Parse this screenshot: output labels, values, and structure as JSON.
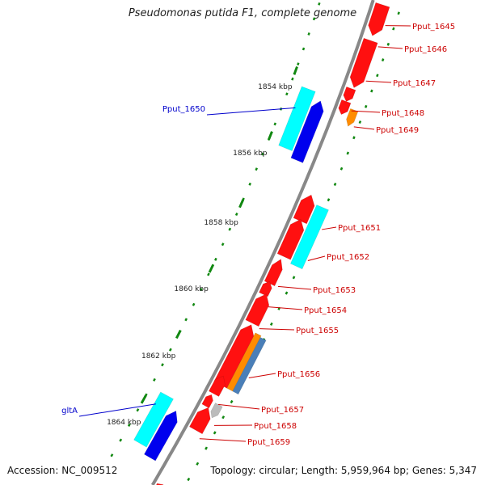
{
  "title": "Pseudomonas putida F1, complete genome",
  "accession": "Accession: NC_009512",
  "summary": "Topology: circular; Length: 5,959,964 bp; Genes: 5,347",
  "colors": {
    "backbone": "#888888",
    "tick": "#118811",
    "red_gene": "#ff1010",
    "cyan_gene": "#00ffff",
    "blue_gene": "#0000ee",
    "orange_gene": "#ff8c00",
    "steelblue_gene": "#4a7fb8",
    "gray_gene": "#bbbbbb",
    "red_label": "#cc0000",
    "blue_label": "#0000cc"
  },
  "kbp_labels": [
    "1854 kbp",
    "1856 kbp",
    "1858 kbp",
    "1860 kbp",
    "1862 kbp",
    "1864 kbp"
  ],
  "red_gene_labels": [
    "Pput_1645",
    "Pput_1646",
    "Pput_1647",
    "Pput_1648",
    "Pput_1649",
    "Pput_1651",
    "Pput_1652",
    "Pput_1653",
    "Pput_1654",
    "Pput_1655",
    "Pput_1656",
    "Pput_1657",
    "Pput_1658",
    "Pput_1659"
  ],
  "blue_gene_labels": [
    "Pput_1650",
    "gltA"
  ]
}
